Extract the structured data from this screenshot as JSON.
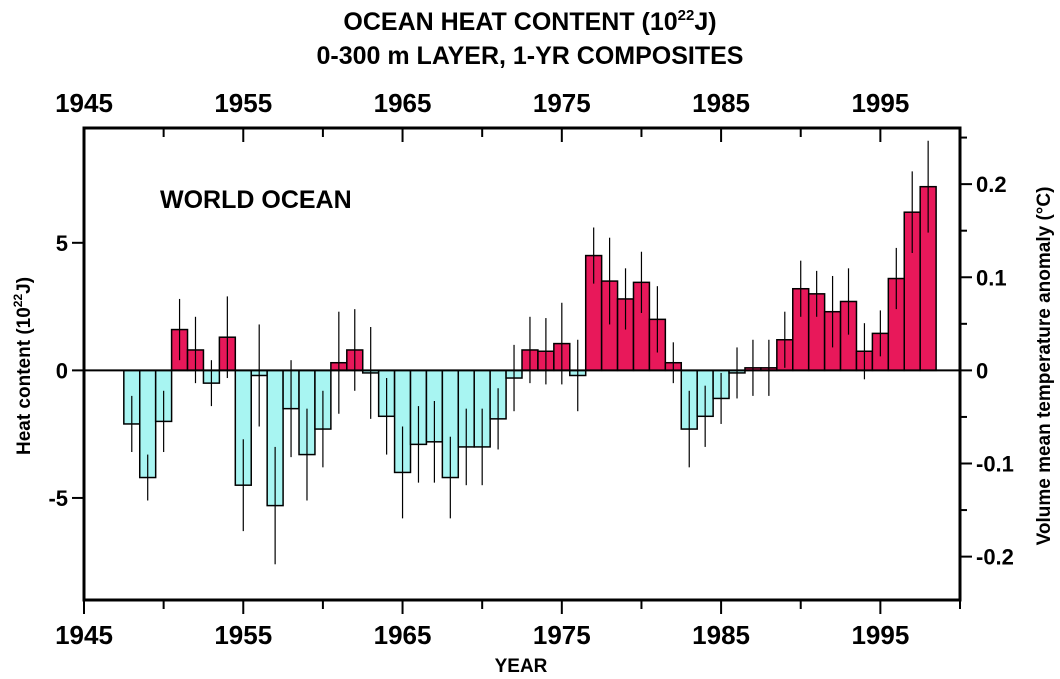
{
  "chart_data": {
    "type": "bar",
    "title_line1": "OCEAN HEAT CONTENT (10",
    "title_line1_sup": "22",
    "title_line1_end": "J)",
    "title_line2": "0-300 m LAYER, 1-YR COMPOSITES",
    "annotation": "WORLD OCEAN",
    "xlabel": "YEAR",
    "ylabel_left": "Heat content (10",
    "ylabel_left_sup": "22",
    "ylabel_left_end": "J)",
    "ylabel_right": "Volume mean temperature anomaly (°C)",
    "xlim": [
      1945,
      2000
    ],
    "ylim": [
      -9,
      9.5
    ],
    "x_tick_labels": [
      "1945",
      "1955",
      "1965",
      "1975",
      "1985",
      "1995"
    ],
    "x_tick_values": [
      1945,
      1955,
      1965,
      1975,
      1985,
      1995
    ],
    "y_left_ticks": [
      {
        "value": 5,
        "label": "5"
      },
      {
        "value": 0,
        "label": "0"
      },
      {
        "value": -5,
        "label": "-5"
      }
    ],
    "y_right_ticks": [
      {
        "value": 7.3,
        "label": "0.2"
      },
      {
        "value": 3.65,
        "label": "0.1"
      },
      {
        "value": 0,
        "label": "0"
      },
      {
        "value": -3.65,
        "label": "-0.1"
      },
      {
        "value": -7.3,
        "label": "-0.2"
      }
    ],
    "colors": {
      "positive": "#e8185a",
      "negative": "#a8f5f2",
      "stroke": "#000000"
    },
    "years": [
      1948,
      1949,
      1950,
      1951,
      1952,
      1953,
      1954,
      1955,
      1956,
      1957,
      1958,
      1959,
      1960,
      1961,
      1962,
      1963,
      1964,
      1965,
      1966,
      1967,
      1968,
      1969,
      1970,
      1971,
      1972,
      1973,
      1974,
      1975,
      1976,
      1977,
      1978,
      1979,
      1980,
      1981,
      1982,
      1983,
      1984,
      1985,
      1986,
      1987,
      1988,
      1989,
      1990,
      1991,
      1992,
      1993,
      1994,
      1995,
      1996,
      1997,
      1998
    ],
    "values": [
      -2.1,
      -4.2,
      -2.0,
      1.6,
      0.8,
      -0.5,
      1.3,
      -4.5,
      -0.2,
      -5.3,
      -1.5,
      -3.3,
      -2.3,
      0.3,
      0.8,
      -0.1,
      -1.8,
      -4.0,
      -2.9,
      -2.8,
      -4.2,
      -3.0,
      -3.0,
      -1.9,
      -0.3,
      0.8,
      0.75,
      1.05,
      -0.2,
      4.5,
      3.5,
      2.8,
      3.45,
      2.0,
      0.3,
      -2.3,
      -1.8,
      -1.1,
      -0.1,
      0.1,
      0.1,
      1.2,
      3.2,
      3.0,
      2.3,
      2.7,
      0.75,
      1.45,
      3.6,
      6.2,
      7.2
    ],
    "errors": [
      1.1,
      0.9,
      1.2,
      1.2,
      1.3,
      0.9,
      1.6,
      1.8,
      2.0,
      2.3,
      1.9,
      1.8,
      1.5,
      2.0,
      1.6,
      1.8,
      1.5,
      1.8,
      1.5,
      1.6,
      1.6,
      1.5,
      1.5,
      1.2,
      1.3,
      1.3,
      1.3,
      1.6,
      1.4,
      1.1,
      1.7,
      1.2,
      1.2,
      1.3,
      0.8,
      1.5,
      1.2,
      1.0,
      1.0,
      1.1,
      1.1,
      1.1,
      1.1,
      0.9,
      1.4,
      1.3,
      1.1,
      0.9,
      1.2,
      1.6,
      1.8
    ]
  }
}
